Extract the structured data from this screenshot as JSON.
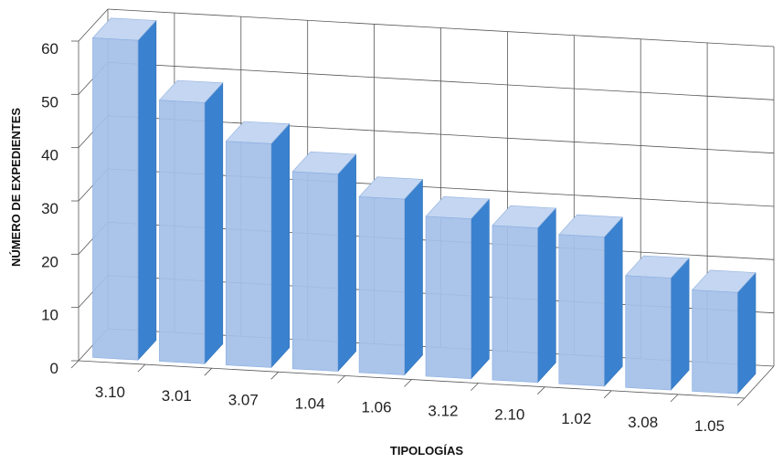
{
  "chart_data": {
    "type": "bar",
    "title": "",
    "xlabel": "TIPOLOGÍAS",
    "ylabel": "NÚMERO DE EXPEDIENTES",
    "categories": [
      "3.10",
      "3.01",
      "3.07",
      "1.04",
      "1.06",
      "3.12",
      "2.10",
      "1.02",
      "3.08",
      "1.05"
    ],
    "values": [
      60,
      49,
      42,
      37,
      33,
      30,
      29,
      28,
      21,
      19
    ],
    "ylim": [
      0,
      60
    ],
    "yticks": [
      0,
      10,
      20,
      30,
      40,
      50,
      60
    ],
    "grid": true,
    "legend": "none",
    "colors": {
      "front": "#a4c0e8",
      "side": "#3a82cf",
      "top": "#c4d6f1",
      "grid": "#555555"
    }
  }
}
